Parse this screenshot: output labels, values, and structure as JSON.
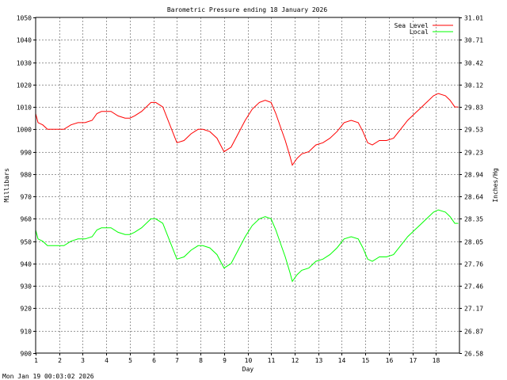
{
  "chart_data": {
    "type": "line",
    "title": "Barometric Pressure ending 18 January 2026",
    "xlabel": "Day",
    "ylabel": "Millibars",
    "y2label": "Inches/Hg",
    "timestamp": "Mon Jan 19 00:03:02 2026",
    "xlim": [
      1,
      19
    ],
    "ylim": [
      900,
      1050
    ],
    "x_ticks": [
      "1",
      "2",
      "3",
      "4",
      "5",
      "6",
      "7",
      "8",
      "9",
      "10",
      "11",
      "12",
      "13",
      "14",
      "15",
      "16",
      "17",
      "18"
    ],
    "y_ticks": [
      "900",
      "910",
      "920",
      "930",
      "940",
      "950",
      "960",
      "970",
      "980",
      "990",
      "1000",
      "1010",
      "1020",
      "1030",
      "1040",
      "1050"
    ],
    "y2_ticks": [
      "26.58",
      "26.87",
      "27.17",
      "27.46",
      "27.76",
      "28.05",
      "28.35",
      "28.64",
      "28.94",
      "29.23",
      "29.53",
      "29.83",
      "30.12",
      "30.42",
      "30.71",
      "31.01"
    ],
    "grid": true,
    "legend_position": "top-right",
    "series": [
      {
        "name": "Sea Level",
        "color": "#ff0000",
        "x": [
          1.0,
          1.1,
          1.3,
          1.5,
          1.8,
          2.0,
          2.2,
          2.5,
          2.8,
          3.1,
          3.4,
          3.6,
          3.8,
          4.0,
          4.2,
          4.5,
          4.8,
          5.0,
          5.2,
          5.5,
          5.9,
          6.1,
          6.4,
          6.7,
          7.0,
          7.3,
          7.6,
          7.9,
          8.1,
          8.4,
          8.7,
          9.0,
          9.3,
          9.6,
          9.9,
          10.2,
          10.5,
          10.75,
          11.0,
          11.2,
          11.4,
          11.6,
          11.8,
          11.9,
          12.1,
          12.3,
          12.6,
          12.9,
          13.2,
          13.5,
          13.8,
          14.1,
          14.4,
          14.7,
          14.9,
          15.1,
          15.3,
          15.6,
          15.9,
          16.2,
          16.5,
          16.8,
          17.1,
          17.3,
          17.6,
          17.9,
          18.1,
          18.4,
          18.6,
          18.8,
          18.95
        ],
        "values": [
          1007,
          1003,
          1002,
          1000,
          1000,
          1000,
          1000,
          1002,
          1003,
          1003,
          1004,
          1007,
          1008,
          1008,
          1008,
          1006,
          1005,
          1005,
          1006,
          1008,
          1012,
          1012,
          1010,
          1002,
          994,
          995,
          998,
          1000,
          1000,
          999,
          996,
          990,
          992,
          998,
          1004,
          1009,
          1012,
          1013,
          1012,
          1007,
          1001,
          995,
          988,
          984,
          987,
          989,
          990,
          993,
          994,
          996,
          999,
          1003,
          1004,
          1003,
          999,
          994,
          993,
          995,
          995,
          996,
          1000,
          1004,
          1007,
          1009,
          1012,
          1015,
          1016,
          1015,
          1013,
          1010,
          1010
        ]
      },
      {
        "name": "Local",
        "color": "#00ff00",
        "x": [
          1.0,
          1.1,
          1.3,
          1.5,
          1.8,
          2.0,
          2.2,
          2.5,
          2.8,
          3.1,
          3.4,
          3.6,
          3.8,
          4.0,
          4.2,
          4.5,
          4.8,
          5.0,
          5.2,
          5.5,
          5.9,
          6.1,
          6.4,
          6.7,
          7.0,
          7.3,
          7.6,
          7.9,
          8.1,
          8.4,
          8.7,
          9.0,
          9.3,
          9.6,
          9.9,
          10.2,
          10.5,
          10.75,
          11.0,
          11.2,
          11.4,
          11.6,
          11.8,
          11.9,
          12.1,
          12.3,
          12.6,
          12.9,
          13.2,
          13.5,
          13.8,
          14.1,
          14.4,
          14.7,
          14.9,
          15.1,
          15.3,
          15.6,
          15.9,
          16.2,
          16.5,
          16.8,
          17.1,
          17.3,
          17.6,
          17.9,
          18.1,
          18.4,
          18.6,
          18.8,
          18.95
        ],
        "values": [
          955,
          951,
          950,
          948,
          948,
          948,
          948,
          950,
          951,
          951,
          952,
          955,
          956,
          956,
          956,
          954,
          953,
          953,
          954,
          956,
          960,
          960,
          958,
          950,
          942,
          943,
          946,
          948,
          948,
          947,
          944,
          938,
          940,
          946,
          952,
          957,
          960,
          961,
          960,
          955,
          949,
          943,
          936,
          932,
          935,
          937,
          938,
          941,
          942,
          944,
          947,
          951,
          952,
          951,
          947,
          942,
          941,
          943,
          943,
          944,
          948,
          952,
          955,
          957,
          960,
          963,
          964,
          963,
          961,
          958,
          958
        ]
      }
    ]
  }
}
